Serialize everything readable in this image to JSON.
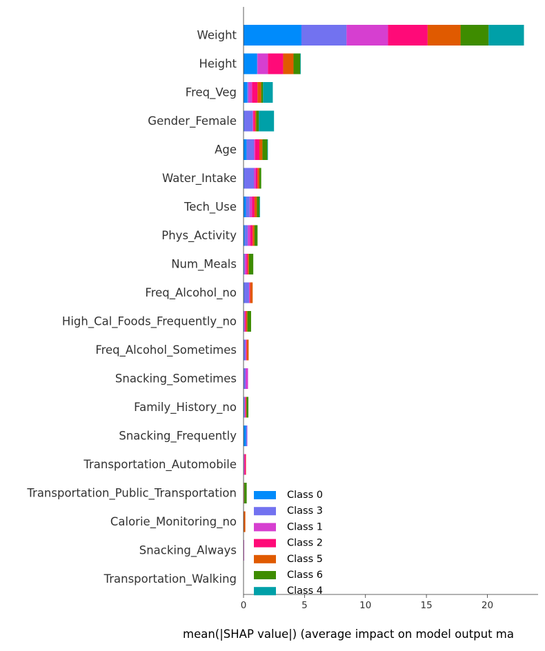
{
  "chart_data": {
    "type": "bar",
    "orientation": "horizontal",
    "stacked": true,
    "title": "",
    "xlabel": "mean(|SHAP value|) (average impact on model output ma",
    "ylabel": "",
    "xlim": [
      0,
      24.5
    ],
    "xticks": [
      0,
      5,
      10,
      15,
      20
    ],
    "grid": false,
    "legend_position": "bottom-right",
    "categories": [
      "Weight",
      "Height",
      "Freq_Veg",
      "Gender_Female",
      "Age",
      "Water_Intake",
      "Tech_Use",
      "Phys_Activity",
      "Num_Meals",
      "Freq_Alcohol_no",
      "High_Cal_Foods_Frequently_no",
      "Freq_Alcohol_Sometimes",
      "Snacking_Sometimes",
      "Family_History_no",
      "Snacking_Frequently",
      "Transportation_Automobile",
      "Transportation_Public_Transportation",
      "Calorie_Monitoring_no",
      "Snacking_Always",
      "Transportation_Walking"
    ],
    "series": [
      {
        "name": "Class 0",
        "color": "#008bfb",
        "values": [
          4.75,
          1.1,
          0.3,
          0.05,
          0.25,
          0.05,
          0.2,
          0.1,
          0.05,
          0.05,
          0.02,
          0.02,
          0.02,
          0.05,
          0.2,
          0.02,
          0.0,
          0.0,
          0.0,
          0.0
        ]
      },
      {
        "name": "Class 3",
        "color": "#7272f0",
        "values": [
          3.7,
          0.05,
          0.1,
          0.7,
          0.6,
          0.8,
          0.3,
          0.25,
          0.05,
          0.4,
          0.05,
          0.15,
          0.15,
          0.05,
          0.1,
          0.02,
          0.02,
          0.0,
          0.0,
          0.0
        ]
      },
      {
        "name": "Class 1",
        "color": "#d63fd0",
        "values": [
          3.4,
          0.85,
          0.3,
          0.05,
          0.1,
          0.15,
          0.2,
          0.2,
          0.15,
          0.05,
          0.05,
          0.05,
          0.2,
          0.05,
          0.02,
          0.05,
          0.02,
          0.0,
          0.05,
          0.0
        ]
      },
      {
        "name": "Class 2",
        "color": "#ff0a78",
        "values": [
          3.25,
          1.25,
          0.45,
          0.15,
          0.35,
          0.15,
          0.2,
          0.2,
          0.1,
          0.05,
          0.1,
          0.05,
          0.0,
          0.05,
          0.0,
          0.1,
          0.0,
          0.0,
          0.0,
          0.0
        ]
      },
      {
        "name": "Class 5",
        "color": "#e05a00",
        "values": [
          2.7,
          0.85,
          0.3,
          0.1,
          0.25,
          0.15,
          0.2,
          0.15,
          0.1,
          0.2,
          0.1,
          0.15,
          0.0,
          0.05,
          0.0,
          0.02,
          0.02,
          0.15,
          0.0,
          0.0
        ]
      },
      {
        "name": "Class 6",
        "color": "#3e8c00",
        "values": [
          2.3,
          0.55,
          0.15,
          0.2,
          0.4,
          0.15,
          0.2,
          0.25,
          0.35,
          0.0,
          0.3,
          0.0,
          0.0,
          0.15,
          0.0,
          0.0,
          0.2,
          0.0,
          0.0,
          0.0
        ]
      },
      {
        "name": "Class 4",
        "color": "#00a0a8",
        "values": [
          2.9,
          0.05,
          0.8,
          1.25,
          0.05,
          0.0,
          0.05,
          0.0,
          0.0,
          0.0,
          0.0,
          0.0,
          0.0,
          0.0,
          0.0,
          0.0,
          0.0,
          0.0,
          0.0,
          0.0
        ]
      }
    ]
  }
}
